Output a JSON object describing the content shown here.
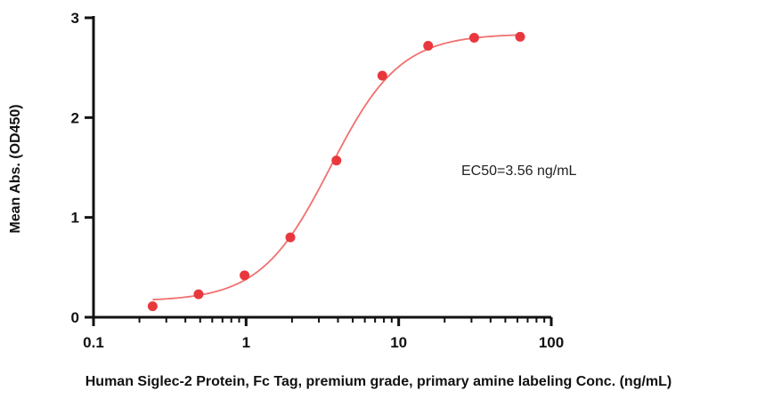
{
  "chart_data": {
    "type": "scatter",
    "title": "",
    "xlabel": "Human Siglec-2 Protein, Fc Tag, premium grade, primary amine labeling Conc. (ng/mL)",
    "ylabel": "Mean Abs. (OD450)",
    "x_scale": "log",
    "xlim": [
      0.1,
      100
    ],
    "ylim": [
      0,
      3
    ],
    "x_ticks": [
      0.1,
      1,
      10,
      100
    ],
    "x_tick_labels": [
      "0.1",
      "1",
      "10",
      "100"
    ],
    "y_ticks": [
      0,
      1,
      2,
      3
    ],
    "y_tick_labels": [
      "0",
      "1",
      "2",
      "3"
    ],
    "grid": false,
    "series": [
      {
        "x": [
          0.244,
          0.488,
          0.977,
          1.95,
          3.91,
          7.81,
          15.6,
          31.25,
          62.5
        ],
        "y": [
          0.11,
          0.23,
          0.42,
          0.8,
          1.57,
          2.42,
          2.72,
          2.8,
          2.81
        ],
        "color": "#e8383d"
      }
    ],
    "fit": {
      "model": "4PL",
      "bottom": 0.16,
      "top": 2.84,
      "ec50": 3.56,
      "hill": 1.9,
      "color": "#f07070"
    },
    "annotations": [
      {
        "text": "EC50=3.56 ng/mL"
      }
    ]
  }
}
